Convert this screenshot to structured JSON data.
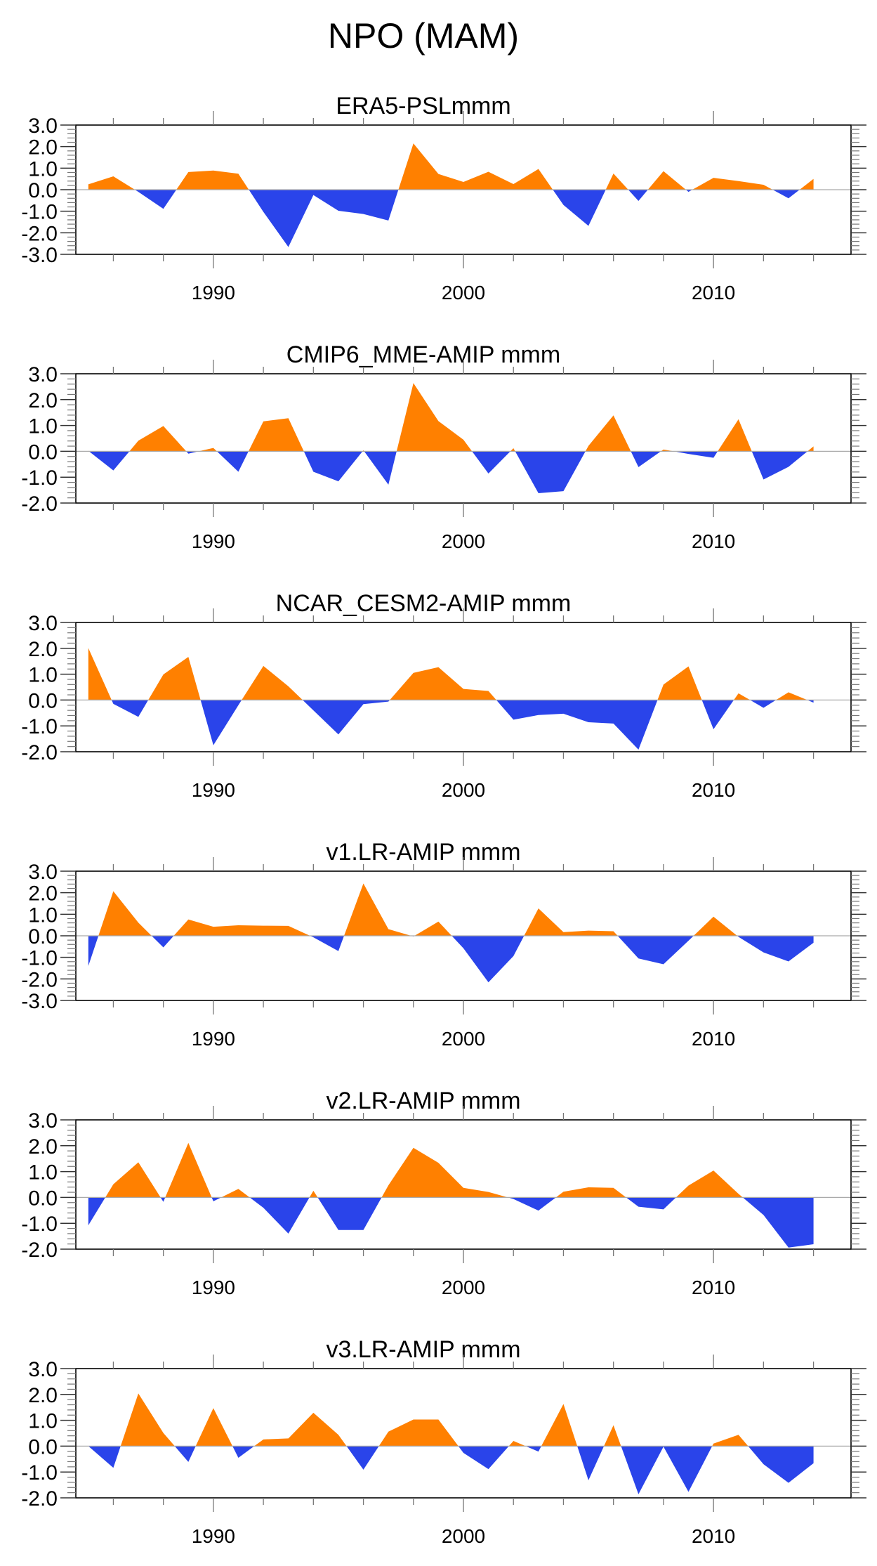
{
  "figure_title": "NPO (MAM)",
  "colors": {
    "positive_fill": "#FF8000",
    "negative_fill": "#2A44EA",
    "zero_line": "#AAAAAA",
    "axis": "#000000"
  },
  "chart_data": [
    {
      "type": "area",
      "title": "ERA5-PSLmmm",
      "xlabel": "",
      "ylabel": "",
      "x": [
        1985,
        1986,
        1987,
        1988,
        1989,
        1990,
        1991,
        1992,
        1993,
        1994,
        1995,
        1996,
        1997,
        1998,
        1999,
        2000,
        2001,
        2002,
        2003,
        2004,
        2005,
        2006,
        2007,
        2008,
        2009,
        2010,
        2011,
        2012,
        2013,
        2014
      ],
      "values": [
        0.25,
        0.62,
        -0.1,
        -0.89,
        0.82,
        0.89,
        0.74,
        -1.03,
        -2.66,
        -0.25,
        -0.98,
        -1.13,
        -1.43,
        2.15,
        0.73,
        0.36,
        0.83,
        0.26,
        0.96,
        -0.71,
        -1.68,
        0.75,
        -0.52,
        0.86,
        -0.1,
        0.55,
        0.4,
        0.23,
        -0.4,
        0.5
      ],
      "xlim": [
        1984.5,
        2015.5
      ],
      "ylim": [
        -3.0,
        3.0
      ],
      "yticks": [
        3.0,
        2.0,
        1.0,
        0.0,
        -1.0,
        -2.0,
        -3.0
      ],
      "ytick_labels": [
        "3.0",
        "2.0",
        "1.0",
        "0.0",
        "-1.0",
        "-2.0",
        "-3.0"
      ],
      "xtick_labels": [
        "1990",
        "2000",
        "2010"
      ],
      "xticks_labeled": [
        1990,
        2000,
        2010
      ],
      "fill_above_zero": "positive_fill",
      "fill_below_zero": "negative_fill",
      "grid": false
    },
    {
      "type": "area",
      "title": "CMIP6_MME-AMIP  mmm",
      "xlabel": "",
      "ylabel": "",
      "x": [
        1985,
        1986,
        1987,
        1988,
        1989,
        1990,
        1991,
        1992,
        1993,
        1994,
        1995,
        1996,
        1997,
        1998,
        1999,
        2000,
        2001,
        2002,
        2003,
        2004,
        2005,
        2006,
        2007,
        2008,
        2009,
        2010,
        2011,
        2012,
        2013,
        2014
      ],
      "values": [
        0.02,
        -0.74,
        0.41,
        0.98,
        -0.09,
        0.13,
        -0.79,
        1.16,
        1.28,
        -0.79,
        -1.16,
        0.04,
        -1.29,
        2.64,
        1.17,
        0.45,
        -0.86,
        0.12,
        -1.62,
        -1.54,
        0.21,
        1.39,
        -0.61,
        0.07,
        -0.1,
        -0.25,
        1.24,
        -1.09,
        -0.6,
        0.19
      ],
      "xlim": [
        1984.5,
        2015.5
      ],
      "ylim": [
        -2.0,
        3.0
      ],
      "yticks": [
        3.0,
        2.0,
        1.0,
        0.0,
        -1.0,
        -2.0
      ],
      "ytick_labels": [
        "3.0",
        "2.0",
        "1.0",
        "0.0",
        "-1.0",
        "-2.0"
      ],
      "xtick_labels": [
        "1990",
        "2000",
        "2010"
      ],
      "xticks_labeled": [
        1990,
        2000,
        2010
      ],
      "fill_above_zero": "positive_fill",
      "fill_below_zero": "negative_fill",
      "grid": false
    },
    {
      "type": "area",
      "title": "NCAR_CESM2-AMIP  mmm",
      "xlabel": "",
      "ylabel": "",
      "x": [
        1985,
        1986,
        1987,
        1988,
        1989,
        1990,
        1991,
        1992,
        1993,
        1994,
        1995,
        1996,
        1997,
        1998,
        1999,
        2000,
        2001,
        2002,
        2003,
        2004,
        2005,
        2006,
        2007,
        2008,
        2009,
        2010,
        2011,
        2012,
        2013,
        2014
      ],
      "values": [
        2.01,
        -0.15,
        -0.65,
        0.99,
        1.67,
        -1.75,
        -0.2,
        1.32,
        0.53,
        -0.4,
        -1.33,
        -0.16,
        -0.06,
        1.05,
        1.27,
        0.43,
        0.35,
        -0.76,
        -0.58,
        -0.53,
        -0.86,
        -0.91,
        -1.92,
        0.6,
        1.3,
        -1.13,
        0.26,
        -0.3,
        0.3,
        -0.1
      ],
      "xlim": [
        1984.5,
        2015.5
      ],
      "ylim": [
        -2.0,
        3.0
      ],
      "yticks": [
        3.0,
        2.0,
        1.0,
        0.0,
        -1.0,
        -2.0
      ],
      "ytick_labels": [
        "3.0",
        "2.0",
        "1.0",
        "0.0",
        "-1.0",
        "-2.0"
      ],
      "xtick_labels": [
        "1990",
        "2000",
        "2010"
      ],
      "xticks_labeled": [
        1990,
        2000,
        2010
      ],
      "fill_above_zero": "positive_fill",
      "fill_below_zero": "negative_fill",
      "grid": false
    },
    {
      "type": "area",
      "title": "v1.LR-AMIP  mmm",
      "xlabel": "",
      "ylabel": "",
      "x": [
        1985,
        1986,
        1987,
        1988,
        1989,
        1990,
        1991,
        1992,
        1993,
        1994,
        1995,
        1996,
        1997,
        1998,
        1999,
        2000,
        2001,
        2002,
        2003,
        2004,
        2005,
        2006,
        2007,
        2008,
        2009,
        2010,
        2011,
        2012,
        2013,
        2014
      ],
      "values": [
        -1.4,
        2.07,
        0.61,
        -0.54,
        0.76,
        0.42,
        0.49,
        0.47,
        0.46,
        -0.07,
        -0.71,
        2.43,
        0.31,
        -0.03,
        0.66,
        -0.58,
        -2.16,
        -0.94,
        1.27,
        0.17,
        0.24,
        0.21,
        -1.05,
        -1.32,
        -0.23,
        0.89,
        -0.05,
        -0.77,
        -1.19,
        -0.32
      ],
      "xlim": [
        1984.5,
        2015.5
      ],
      "ylim": [
        -3.0,
        3.0
      ],
      "yticks": [
        3.0,
        2.0,
        1.0,
        0.0,
        -1.0,
        -2.0,
        -3.0
      ],
      "ytick_labels": [
        "3.0",
        "2.0",
        "1.0",
        "0.0",
        "-1.0",
        "-2.0",
        "-3.0"
      ],
      "xtick_labels": [
        "1990",
        "2000",
        "2010"
      ],
      "xticks_labeled": [
        1990,
        2000,
        2010
      ],
      "fill_above_zero": "positive_fill",
      "fill_below_zero": "negative_fill",
      "grid": false
    },
    {
      "type": "area",
      "title": "v2.LR-AMIP  mmm",
      "xlabel": "",
      "ylabel": "",
      "x": [
        1985,
        1986,
        1987,
        1988,
        1989,
        1990,
        1991,
        1992,
        1993,
        1994,
        1995,
        1996,
        1997,
        1998,
        1999,
        2000,
        2001,
        2002,
        2003,
        2004,
        2005,
        2006,
        2007,
        2008,
        2009,
        2010,
        2011,
        2012,
        2013,
        2014
      ],
      "values": [
        -1.08,
        0.51,
        1.36,
        -0.17,
        2.11,
        -0.15,
        0.33,
        -0.4,
        -1.4,
        0.26,
        -1.26,
        -1.26,
        0.47,
        1.92,
        1.34,
        0.37,
        0.21,
        -0.06,
        -0.51,
        0.22,
        0.39,
        0.37,
        -0.36,
        -0.46,
        0.46,
        1.04,
        0.14,
        -0.68,
        -1.94,
        -1.81
      ],
      "xlim": [
        1984.5,
        2015.5
      ],
      "ylim": [
        -2.0,
        3.0
      ],
      "yticks": [
        3.0,
        2.0,
        1.0,
        0.0,
        -1.0,
        -2.0
      ],
      "ytick_labels": [
        "3.0",
        "2.0",
        "1.0",
        "0.0",
        "-1.0",
        "-2.0"
      ],
      "xtick_labels": [
        "1990",
        "2000",
        "2010"
      ],
      "xticks_labeled": [
        1990,
        2000,
        2010
      ],
      "fill_above_zero": "positive_fill",
      "fill_below_zero": "negative_fill",
      "grid": false
    },
    {
      "type": "area",
      "title": "v3.LR-AMIP  mmm",
      "xlabel": "",
      "ylabel": "",
      "x": [
        1985,
        1986,
        1987,
        1988,
        1989,
        1990,
        1991,
        1992,
        1993,
        1994,
        1995,
        1996,
        1997,
        1998,
        1999,
        2000,
        2001,
        2002,
        2003,
        2004,
        2005,
        2006,
        2007,
        2008,
        2009,
        2010,
        2011,
        2012,
        2013,
        2014
      ],
      "values": [
        0.0,
        -0.84,
        2.04,
        0.51,
        -0.61,
        1.47,
        -0.45,
        0.26,
        0.3,
        1.29,
        0.44,
        -0.91,
        0.56,
        1.03,
        1.03,
        -0.26,
        -0.89,
        0.2,
        -0.21,
        1.63,
        -1.32,
        0.81,
        -1.86,
        -0.02,
        -1.77,
        0.1,
        0.44,
        -0.7,
        -1.42,
        -0.66
      ],
      "xlim": [
        1984.5,
        2015.5
      ],
      "ylim": [
        -2.0,
        3.0
      ],
      "yticks": [
        3.0,
        2.0,
        1.0,
        0.0,
        -1.0,
        -2.0
      ],
      "ytick_labels": [
        "3.0",
        "2.0",
        "1.0",
        "0.0",
        "-1.0",
        "-2.0"
      ],
      "xtick_labels": [
        "1990",
        "2000",
        "2010"
      ],
      "xticks_labeled": [
        1990,
        2000,
        2010
      ],
      "fill_above_zero": "positive_fill",
      "fill_below_zero": "negative_fill",
      "grid": false
    }
  ]
}
